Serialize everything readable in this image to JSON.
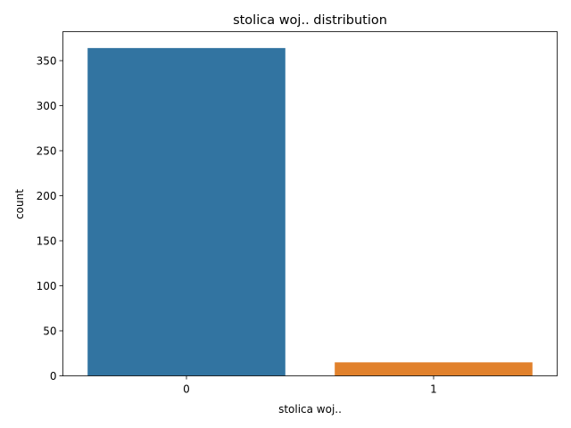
{
  "chart_data": {
    "type": "bar",
    "title": "stolica woj.. distribution",
    "xlabel": "stolica woj..",
    "ylabel": "count",
    "categories": [
      "0",
      "1"
    ],
    "values": [
      364,
      15
    ],
    "colors": [
      "#3274a1",
      "#e1812c"
    ],
    "ylim": [
      0,
      382.2
    ],
    "yticks": [
      0,
      50,
      100,
      150,
      200,
      250,
      300,
      350
    ],
    "grid": false,
    "legend": "none"
  }
}
